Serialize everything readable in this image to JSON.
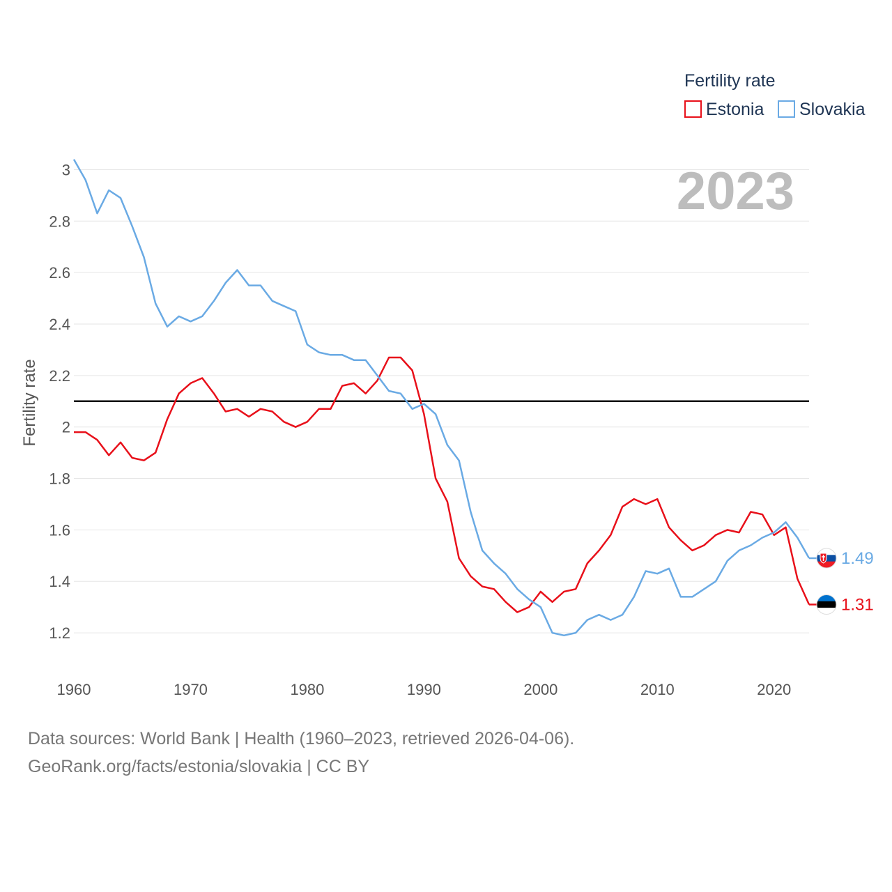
{
  "chart_data": {
    "type": "line",
    "ylabel": "Fertility rate",
    "xlabel": "",
    "xlim": [
      1960,
      2023
    ],
    "ylim": [
      1.1,
      3.05
    ],
    "xticks": [
      1960,
      1970,
      1980,
      1990,
      2000,
      2010,
      2020
    ],
    "yticks": [
      1.2,
      1.4,
      1.6,
      1.8,
      2,
      2.2,
      2.4,
      2.6,
      2.8,
      3
    ],
    "ytick_labels": [
      "1.2",
      "1.4",
      "1.6",
      "1.8",
      "2",
      "2.2",
      "2.4",
      "2.6",
      "2.8",
      "3"
    ],
    "reference_line": 2.1,
    "year_label": "2023",
    "legend_title": "Fertility rate",
    "x": [
      1960,
      1961,
      1962,
      1963,
      1964,
      1965,
      1966,
      1967,
      1968,
      1969,
      1970,
      1971,
      1972,
      1973,
      1974,
      1975,
      1976,
      1977,
      1978,
      1979,
      1980,
      1981,
      1982,
      1983,
      1984,
      1985,
      1986,
      1987,
      1988,
      1989,
      1990,
      1991,
      1992,
      1993,
      1994,
      1995,
      1996,
      1997,
      1998,
      1999,
      2000,
      2001,
      2002,
      2003,
      2004,
      2005,
      2006,
      2007,
      2008,
      2009,
      2010,
      2011,
      2012,
      2013,
      2014,
      2015,
      2016,
      2017,
      2018,
      2019,
      2020,
      2021,
      2022,
      2023
    ],
    "series": [
      {
        "name": "Estonia",
        "color": "#e8101a",
        "end_label": "1.31",
        "flag": "estonia-flag",
        "values": [
          1.98,
          1.98,
          1.95,
          1.89,
          1.94,
          1.88,
          1.87,
          1.9,
          2.03,
          2.13,
          2.17,
          2.19,
          2.13,
          2.06,
          2.07,
          2.04,
          2.07,
          2.06,
          2.02,
          2.0,
          2.02,
          2.07,
          2.07,
          2.16,
          2.17,
          2.13,
          2.18,
          2.27,
          2.27,
          2.22,
          2.05,
          1.8,
          1.71,
          1.49,
          1.42,
          1.38,
          1.37,
          1.32,
          1.28,
          1.3,
          1.36,
          1.32,
          1.36,
          1.37,
          1.47,
          1.52,
          1.58,
          1.69,
          1.72,
          1.7,
          1.72,
          1.61,
          1.56,
          1.52,
          1.54,
          1.58,
          1.6,
          1.59,
          1.67,
          1.66,
          1.58,
          1.61,
          1.41,
          1.31
        ]
      },
      {
        "name": "Slovakia",
        "color": "#6aaae4",
        "end_label": "1.49",
        "flag": "slovakia-flag",
        "values": [
          3.04,
          2.96,
          2.83,
          2.92,
          2.89,
          2.78,
          2.66,
          2.48,
          2.39,
          2.43,
          2.41,
          2.43,
          2.49,
          2.56,
          2.61,
          2.55,
          2.55,
          2.49,
          2.47,
          2.45,
          2.32,
          2.29,
          2.28,
          2.28,
          2.26,
          2.26,
          2.2,
          2.14,
          2.13,
          2.07,
          2.09,
          2.05,
          1.93,
          1.87,
          1.67,
          1.52,
          1.47,
          1.43,
          1.37,
          1.33,
          1.3,
          1.2,
          1.19,
          1.2,
          1.25,
          1.27,
          1.25,
          1.27,
          1.34,
          1.44,
          1.43,
          1.45,
          1.34,
          1.34,
          1.37,
          1.4,
          1.48,
          1.52,
          1.54,
          1.57,
          1.59,
          1.63,
          1.57,
          1.49
        ]
      }
    ]
  },
  "source": {
    "line1": "Data sources: World Bank | Health (1960–2023, retrieved 2026-04-06).",
    "line2": "GeoRank.org/facts/estonia/slovakia | CC BY"
  }
}
